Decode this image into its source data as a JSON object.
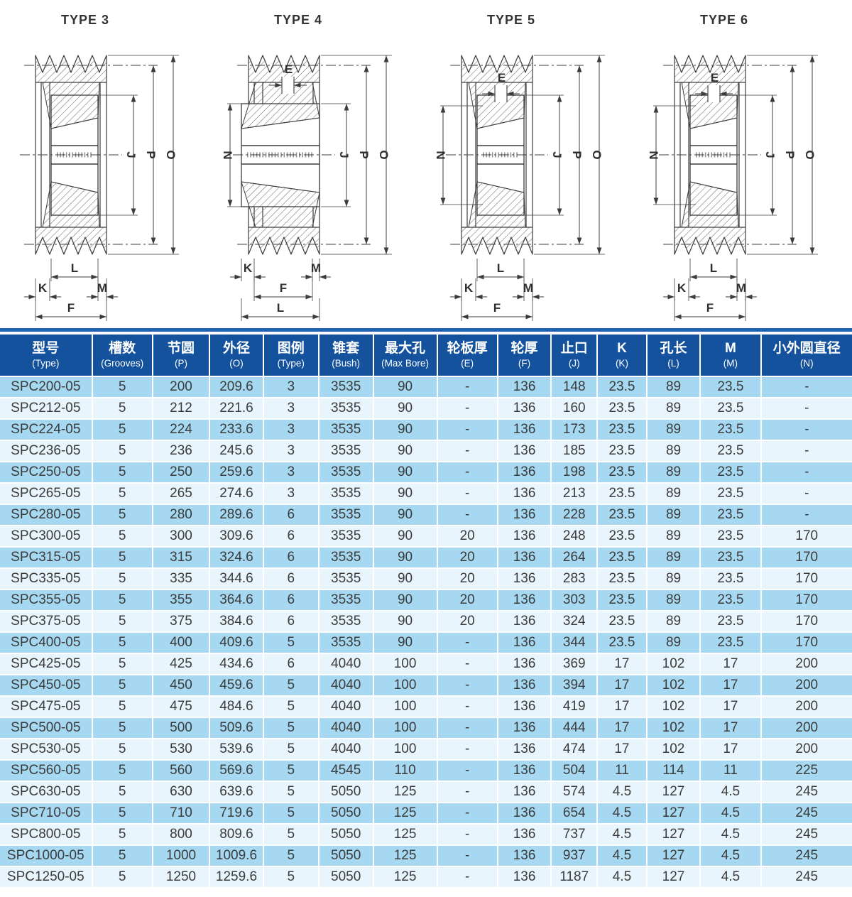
{
  "figures": [
    {
      "title": "TYPE 3",
      "labels": {
        "J": "J",
        "P": "P",
        "O": "O",
        "L": "L",
        "K": "K",
        "M": "M",
        "F": "F"
      }
    },
    {
      "title": "TYPE 4",
      "labels": {
        "E": "E",
        "N": "N",
        "J": "J",
        "P": "P",
        "O": "O",
        "L": "L",
        "K": "K",
        "M": "M",
        "F": "F"
      }
    },
    {
      "title": "TYPE 5",
      "labels": {
        "E": "E",
        "N": "N",
        "J": "J",
        "P": "P",
        "O": "O",
        "L": "L",
        "K": "K",
        "M": "M",
        "F": "F"
      }
    },
    {
      "title": "TYPE 6",
      "labels": {
        "E": "E",
        "N": "N",
        "J": "J",
        "P": "P",
        "O": "O",
        "L": "L",
        "K": "K",
        "M": "M",
        "F": "F"
      }
    }
  ],
  "table": {
    "columns": [
      {
        "zh": "型号",
        "en": "(Type)"
      },
      {
        "zh": "槽数",
        "en": "(Grooves)"
      },
      {
        "zh": "节圆",
        "en": "(P)"
      },
      {
        "zh": "外径",
        "en": "(O)"
      },
      {
        "zh": "图例",
        "en": "(Type)"
      },
      {
        "zh": "锥套",
        "en": "(Bush)"
      },
      {
        "zh": "最大孔",
        "en": "(Max Bore)"
      },
      {
        "zh": "轮板厚",
        "en": "(E)"
      },
      {
        "zh": "轮厚",
        "en": "(F)"
      },
      {
        "zh": "止口",
        "en": "(J)"
      },
      {
        "zh": "K",
        "en": "(K)"
      },
      {
        "zh": "孔长",
        "en": "(L)"
      },
      {
        "zh": "M",
        "en": "(M)"
      },
      {
        "zh": "小外圆直径",
        "en": "(N)"
      }
    ],
    "rows": [
      [
        "SPC200-05",
        "5",
        "200",
        "209.6",
        "3",
        "3535",
        "90",
        "-",
        "136",
        "148",
        "23.5",
        "89",
        "23.5",
        "-"
      ],
      [
        "SPC212-05",
        "5",
        "212",
        "221.6",
        "3",
        "3535",
        "90",
        "-",
        "136",
        "160",
        "23.5",
        "89",
        "23.5",
        "-"
      ],
      [
        "SPC224-05",
        "5",
        "224",
        "233.6",
        "3",
        "3535",
        "90",
        "-",
        "136",
        "173",
        "23.5",
        "89",
        "23.5",
        "-"
      ],
      [
        "SPC236-05",
        "5",
        "236",
        "245.6",
        "3",
        "3535",
        "90",
        "-",
        "136",
        "185",
        "23.5",
        "89",
        "23.5",
        "-"
      ],
      [
        "SPC250-05",
        "5",
        "250",
        "259.6",
        "3",
        "3535",
        "90",
        "-",
        "136",
        "198",
        "23.5",
        "89",
        "23.5",
        "-"
      ],
      [
        "SPC265-05",
        "5",
        "265",
        "274.6",
        "3",
        "3535",
        "90",
        "-",
        "136",
        "213",
        "23.5",
        "89",
        "23.5",
        "-"
      ],
      [
        "SPC280-05",
        "5",
        "280",
        "289.6",
        "6",
        "3535",
        "90",
        "-",
        "136",
        "228",
        "23.5",
        "89",
        "23.5",
        "-"
      ],
      [
        "SPC300-05",
        "5",
        "300",
        "309.6",
        "6",
        "3535",
        "90",
        "20",
        "136",
        "248",
        "23.5",
        "89",
        "23.5",
        "170"
      ],
      [
        "SPC315-05",
        "5",
        "315",
        "324.6",
        "6",
        "3535",
        "90",
        "20",
        "136",
        "264",
        "23.5",
        "89",
        "23.5",
        "170"
      ],
      [
        "SPC335-05",
        "5",
        "335",
        "344.6",
        "6",
        "3535",
        "90",
        "20",
        "136",
        "283",
        "23.5",
        "89",
        "23.5",
        "170"
      ],
      [
        "SPC355-05",
        "5",
        "355",
        "364.6",
        "6",
        "3535",
        "90",
        "20",
        "136",
        "303",
        "23.5",
        "89",
        "23.5",
        "170"
      ],
      [
        "SPC375-05",
        "5",
        "375",
        "384.6",
        "6",
        "3535",
        "90",
        "20",
        "136",
        "324",
        "23.5",
        "89",
        "23.5",
        "170"
      ],
      [
        "SPC400-05",
        "5",
        "400",
        "409.6",
        "5",
        "3535",
        "90",
        "-",
        "136",
        "344",
        "23.5",
        "89",
        "23.5",
        "170"
      ],
      [
        "SPC425-05",
        "5",
        "425",
        "434.6",
        "6",
        "4040",
        "100",
        "-",
        "136",
        "369",
        "17",
        "102",
        "17",
        "200"
      ],
      [
        "SPC450-05",
        "5",
        "450",
        "459.6",
        "5",
        "4040",
        "100",
        "-",
        "136",
        "394",
        "17",
        "102",
        "17",
        "200"
      ],
      [
        "SPC475-05",
        "5",
        "475",
        "484.6",
        "5",
        "4040",
        "100",
        "-",
        "136",
        "419",
        "17",
        "102",
        "17",
        "200"
      ],
      [
        "SPC500-05",
        "5",
        "500",
        "509.6",
        "5",
        "4040",
        "100",
        "-",
        "136",
        "444",
        "17",
        "102",
        "17",
        "200"
      ],
      [
        "SPC530-05",
        "5",
        "530",
        "539.6",
        "5",
        "4040",
        "100",
        "-",
        "136",
        "474",
        "17",
        "102",
        "17",
        "200"
      ],
      [
        "SPC560-05",
        "5",
        "560",
        "569.6",
        "5",
        "4545",
        "110",
        "-",
        "136",
        "504",
        "11",
        "114",
        "11",
        "225"
      ],
      [
        "SPC630-05",
        "5",
        "630",
        "639.6",
        "5",
        "5050",
        "125",
        "-",
        "136",
        "574",
        "4.5",
        "127",
        "4.5",
        "245"
      ],
      [
        "SPC710-05",
        "5",
        "710",
        "719.6",
        "5",
        "5050",
        "125",
        "-",
        "136",
        "654",
        "4.5",
        "127",
        "4.5",
        "245"
      ],
      [
        "SPC800-05",
        "5",
        "800",
        "809.6",
        "5",
        "5050",
        "125",
        "-",
        "136",
        "737",
        "4.5",
        "127",
        "4.5",
        "245"
      ],
      [
        "SPC1000-05",
        "5",
        "1000",
        "1009.6",
        "5",
        "5050",
        "125",
        "-",
        "136",
        "937",
        "4.5",
        "127",
        "4.5",
        "245"
      ],
      [
        "SPC1250-05",
        "5",
        "1250",
        "1259.6",
        "5",
        "5050",
        "125",
        "-",
        "136",
        "1187",
        "4.5",
        "127",
        "4.5",
        "245"
      ]
    ]
  },
  "colors": {
    "header_bg": "#14529D",
    "accent_bar": "#1E63B0",
    "row_light_blue": "#A6D8F1",
    "row_pale_blue": "#E9F5FC",
    "drawing_line": "#3C3C3C",
    "body_text": "#3B3B3B"
  }
}
